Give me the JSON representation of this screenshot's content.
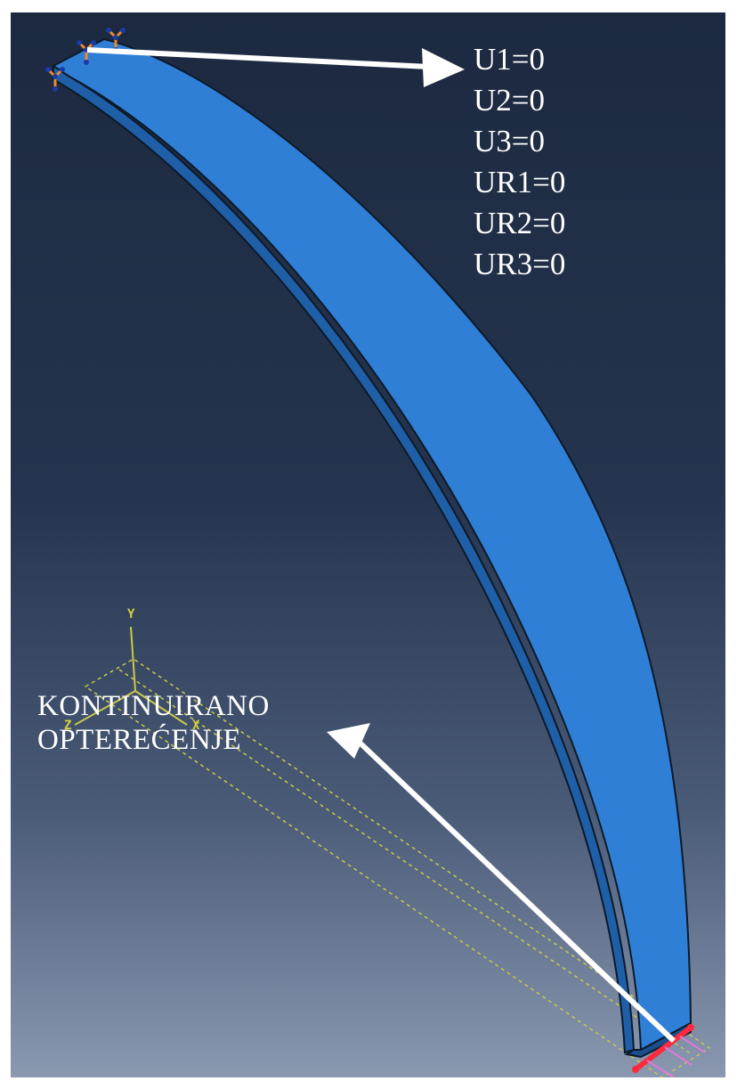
{
  "boundary_conditions": [
    "U1=0",
    "U2=0",
    "U3=0",
    "UR1=0",
    "UR2=0",
    "UR3=0"
  ],
  "load_label": [
    "KONTINUIRANO",
    "OPTEREĆENJE"
  ],
  "axes": {
    "y": "Y",
    "z": "Z",
    "x": "X"
  },
  "colors": {
    "beam": "#2f7fd6",
    "beam_side": "#1f5fa8",
    "annotation": "#ffffff",
    "axis": "#d4d23a",
    "load": "#ff2a3d",
    "load_arrows": "#e07ad8",
    "bc_symbol": "#f08a2a"
  },
  "icons": [
    "boundary-condition-symbol",
    "load-arrow-symbol",
    "coordinate-triad-icon"
  ]
}
